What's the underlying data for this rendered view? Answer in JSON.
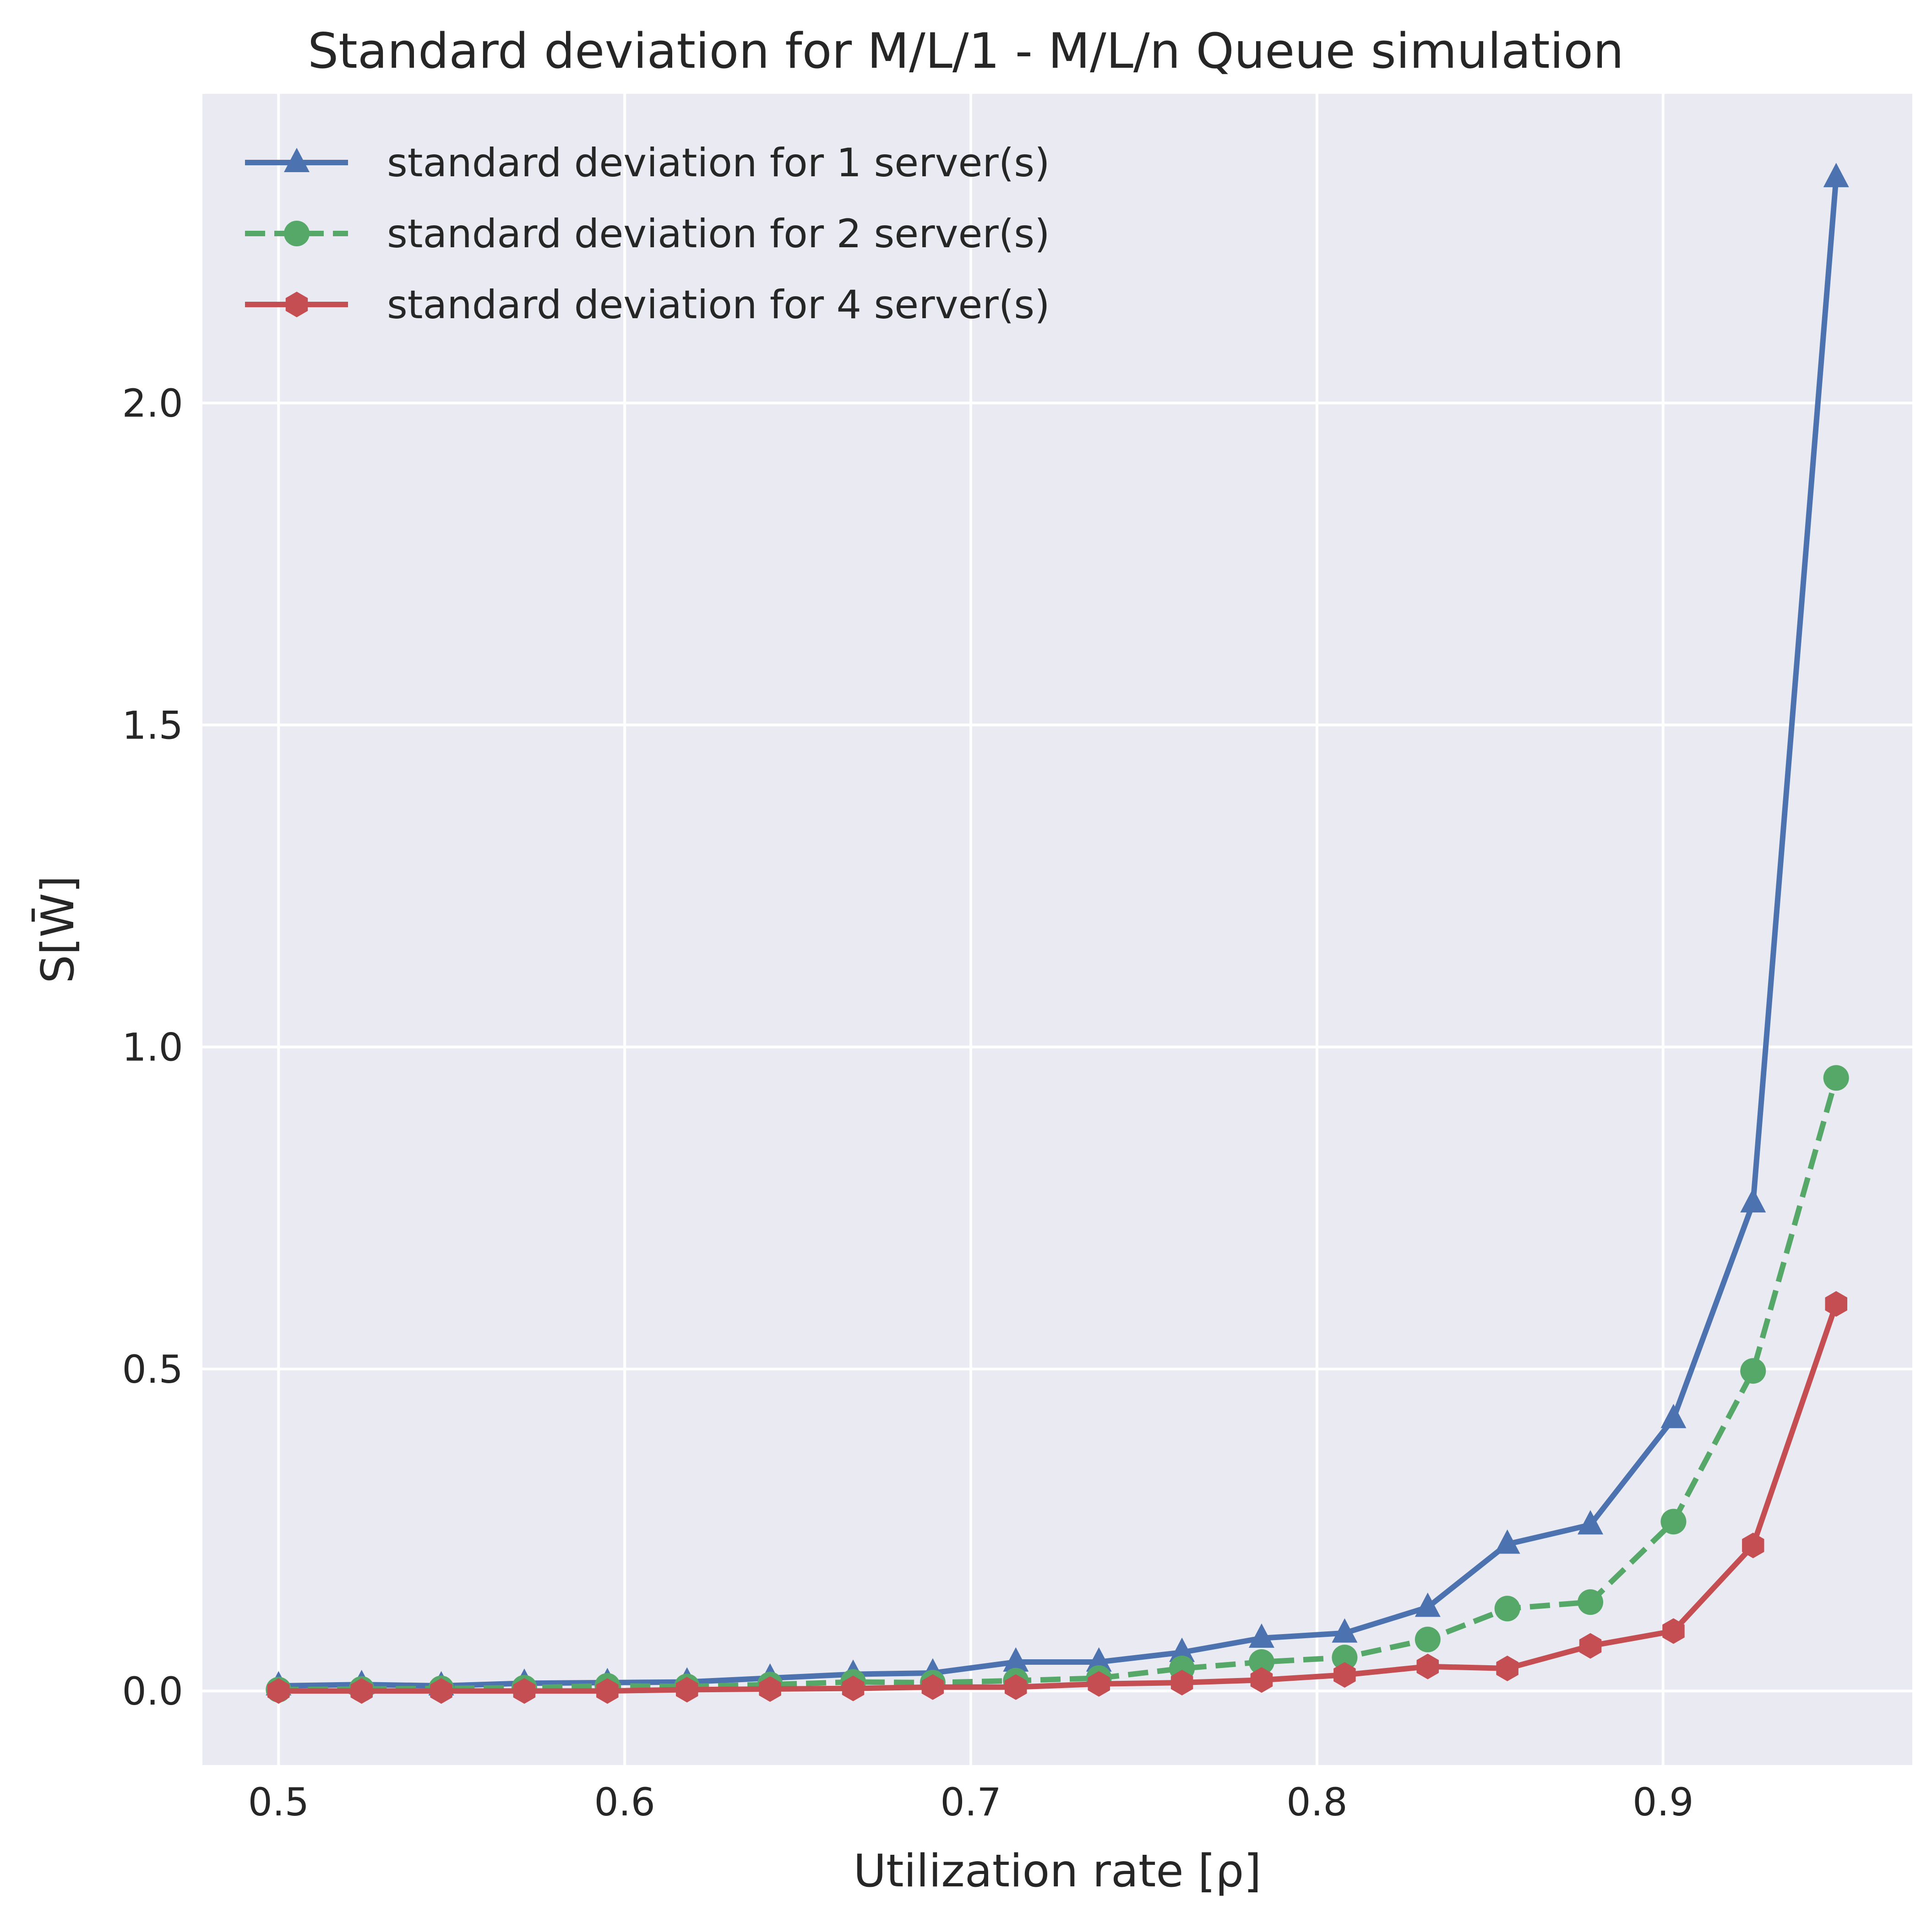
{
  "chart_data": {
    "type": "line",
    "title": "Standard deviation for M/L/1 - M/L/n Queue simulation",
    "xlabel": "Utilization rate [ρ]",
    "ylabel": "S[W̄]",
    "xlim": [
      0.478,
      0.972
    ],
    "ylim": [
      -0.115,
      2.48
    ],
    "xticks": [
      0.5,
      0.6,
      0.7,
      0.8,
      0.9
    ],
    "xtick_labels": [
      "0.5",
      "0.6",
      "0.7",
      "0.8",
      "0.9"
    ],
    "yticks": [
      0.0,
      0.5,
      1.0,
      1.5,
      2.0
    ],
    "ytick_labels": [
      "0.0",
      "0.5",
      "1.0",
      "1.5",
      "2.0"
    ],
    "grid": true,
    "legend_position": "top-left",
    "x": [
      0.5,
      0.524,
      0.547,
      0.571,
      0.595,
      0.618,
      0.642,
      0.666,
      0.689,
      0.713,
      0.737,
      0.761,
      0.784,
      0.808,
      0.832,
      0.855,
      0.879,
      0.903,
      0.926,
      0.95
    ],
    "series": [
      {
        "name": "standard deviation for 1 server(s)",
        "color": "#4c72b0",
        "marker": "triangle",
        "dash": "solid",
        "values": [
          0.008,
          0.01,
          0.008,
          0.012,
          0.013,
          0.014,
          0.02,
          0.026,
          0.028,
          0.045,
          0.045,
          0.06,
          0.082,
          0.09,
          0.13,
          0.228,
          0.258,
          0.423,
          0.758,
          2.35
        ]
      },
      {
        "name": "standard deviation for 2 server(s)",
        "color": "#55a868",
        "marker": "circle",
        "dash": "dashed",
        "values": [
          0.002,
          0.003,
          0.004,
          0.005,
          0.008,
          0.007,
          0.01,
          0.014,
          0.013,
          0.016,
          0.02,
          0.035,
          0.045,
          0.052,
          0.08,
          0.128,
          0.138,
          0.263,
          0.497,
          0.952
        ]
      },
      {
        "name": "standard deviation for 4 server(s)",
        "color": "#c44e52",
        "marker": "hexagon",
        "dash": "solid",
        "values": [
          0.0,
          0.0,
          0.0,
          0.0,
          0.0,
          0.002,
          0.003,
          0.004,
          0.006,
          0.006,
          0.011,
          0.013,
          0.017,
          0.025,
          0.038,
          0.035,
          0.07,
          0.093,
          0.226,
          0.601
        ]
      }
    ]
  }
}
